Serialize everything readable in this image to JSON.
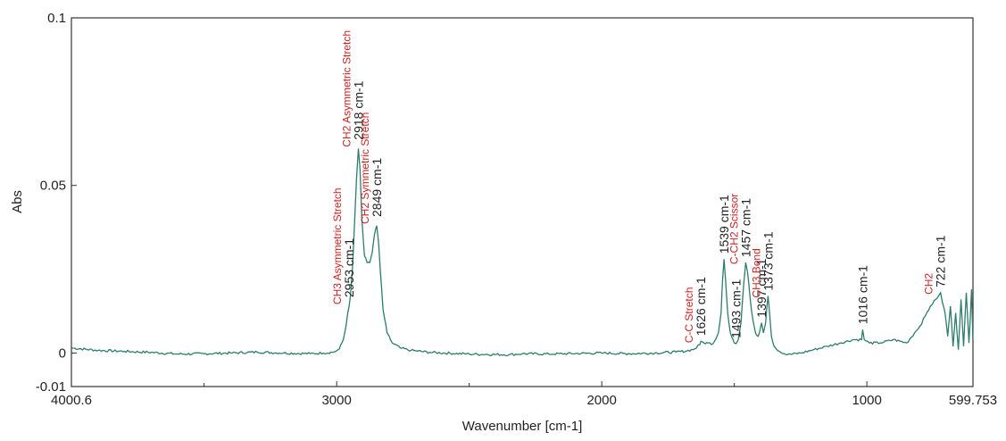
{
  "colors": {
    "trace": "#2e7d6a",
    "frame": "#333333",
    "assignment": "#cc2222"
  },
  "chart_data": {
    "type": "line",
    "title": "",
    "xlabel": "Wavenumber [cm-1]",
    "ylabel": "Abs",
    "xlim": [
      4000.6,
      599.753
    ],
    "ylim": [
      -0.01,
      0.1
    ],
    "x_reversed": true,
    "grid": false,
    "xticks": [
      {
        "value": 4000.6,
        "label": "4000.6"
      },
      {
        "value": 3000,
        "label": "3000"
      },
      {
        "value": 2000,
        "label": "2000"
      },
      {
        "value": 1000,
        "label": "1000"
      },
      {
        "value": 599.753,
        "label": "599.753"
      }
    ],
    "yticks": [
      {
        "value": 0.1,
        "label": "0.1"
      },
      {
        "value": 0.05,
        "label": "0.05"
      },
      {
        "value": 0,
        "label": "0"
      },
      {
        "value": -0.01,
        "label": "-0.01"
      }
    ],
    "series": [
      {
        "x": [
          4000,
          3900,
          3800,
          3700,
          3600,
          3500,
          3400,
          3300,
          3200,
          3100,
          3050,
          3010,
          2990,
          2975,
          2965,
          2958,
          2953,
          2948,
          2940,
          2932,
          2925,
          2918,
          2912,
          2905,
          2895,
          2885,
          2875,
          2866,
          2858,
          2849,
          2842,
          2835,
          2825,
          2810,
          2790,
          2760,
          2720,
          2650,
          2500,
          2350,
          2300,
          2200,
          2000,
          1900,
          1800,
          1720,
          1680,
          1650,
          1630,
          1626,
          1615,
          1600,
          1580,
          1560,
          1550,
          1545,
          1539,
          1533,
          1525,
          1515,
          1500,
          1493,
          1485,
          1475,
          1465,
          1457,
          1450,
          1440,
          1430,
          1420,
          1410,
          1400,
          1397,
          1390,
          1382,
          1377,
          1373,
          1368,
          1360,
          1350,
          1330,
          1300,
          1250,
          1200,
          1150,
          1100,
          1050,
          1020,
          1016,
          1010,
          990,
          950,
          900,
          850,
          820,
          800,
          780,
          760,
          740,
          730,
          722,
          715,
          705,
          695,
          685,
          675,
          665,
          655,
          645,
          635,
          625,
          615,
          605,
          600
        ],
        "y": [
          0.0015,
          0.0008,
          0.0005,
          0.0002,
          -0.0003,
          -0.0002,
          0.0,
          0.0003,
          0.0,
          -0.0002,
          0.0,
          0.0003,
          0.0012,
          0.004,
          0.008,
          0.012,
          0.014,
          0.017,
          0.026,
          0.04,
          0.052,
          0.061,
          0.055,
          0.04,
          0.029,
          0.027,
          0.027,
          0.03,
          0.035,
          0.038,
          0.033,
          0.024,
          0.013,
          0.006,
          0.003,
          0.0015,
          0.0008,
          0.0002,
          -0.0003,
          -0.0005,
          -0.0002,
          -0.0003,
          0.0,
          -0.0002,
          0.0,
          0.0003,
          0.0006,
          0.0012,
          0.0025,
          0.0035,
          0.003,
          0.003,
          0.0028,
          0.006,
          0.012,
          0.021,
          0.028,
          0.022,
          0.012,
          0.006,
          0.003,
          0.0028,
          0.004,
          0.009,
          0.02,
          0.027,
          0.024,
          0.016,
          0.01,
          0.006,
          0.005,
          0.008,
          0.009,
          0.006,
          0.009,
          0.014,
          0.017,
          0.013,
          0.005,
          0.002,
          0.0005,
          -0.0005,
          0.0,
          0.001,
          0.002,
          0.003,
          0.004,
          0.004,
          0.007,
          0.004,
          0.003,
          0.003,
          0.004,
          0.003,
          0.006,
          0.008,
          0.011,
          0.014,
          0.016,
          0.017,
          0.018,
          0.015,
          0.012,
          0.005,
          0.014,
          0.002,
          0.012,
          0.001,
          0.016,
          0.002,
          0.018,
          0.003,
          0.019,
          0.004
        ]
      }
    ],
    "annotations": [
      {
        "x": 2918,
        "y": 0.062,
        "label": "2918 cm-1",
        "assignment": "CH2 Asymmetric Stretch"
      },
      {
        "x": 2849,
        "y": 0.039,
        "label": "2849 cm-1",
        "assignment": "CH2 Symmetric Stretch"
      },
      {
        "x": 2953,
        "y": 0.015,
        "label": "2953 cm-1",
        "assignment": "CH3 Asymmetric Stretch"
      },
      {
        "x": 1626,
        "y": 0.0035,
        "label": "1626 cm-1",
        "assignment": "C-C Stretch"
      },
      {
        "x": 1539,
        "y": 0.028,
        "label": "1539 cm-1",
        "assignment": ""
      },
      {
        "x": 1493,
        "y": 0.0028,
        "label": "1493 cm-1",
        "assignment": ""
      },
      {
        "x": 1457,
        "y": 0.027,
        "label": "1457 cm-1",
        "assignment": "C-CH2 Scissor"
      },
      {
        "x": 1397,
        "y": 0.009,
        "label": "1397 cm-1",
        "assignment": ""
      },
      {
        "x": 1373,
        "y": 0.017,
        "label": "1373 cm-1",
        "assignment": "CH3 Bend"
      },
      {
        "x": 1016,
        "y": 0.007,
        "label": "1016 cm-1",
        "assignment": ""
      },
      {
        "x": 722,
        "y": 0.018,
        "label": "722 cm-1",
        "assignment": "CH2"
      }
    ]
  }
}
